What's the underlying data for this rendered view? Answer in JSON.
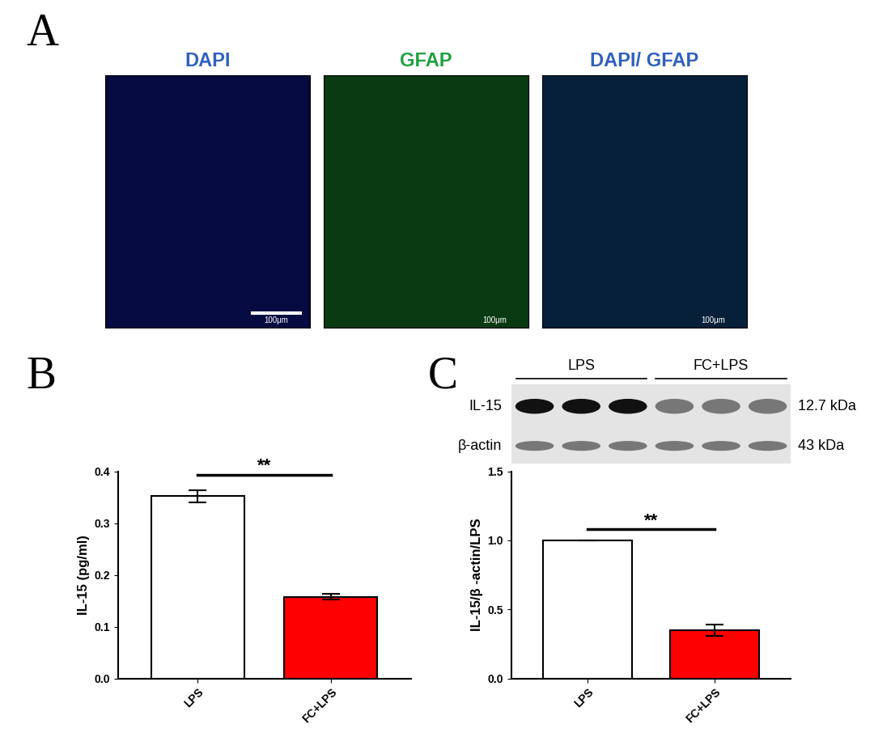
{
  "panel_labels": [
    "A",
    "B",
    "C"
  ],
  "images": {
    "titles": [
      "DAPI",
      "GFAP",
      "DAPI/ GFAP"
    ],
    "scale_bar": "100μm"
  },
  "blot": {
    "groups": [
      "LPS",
      "FC+LPS"
    ],
    "rows": [
      {
        "name": "IL-15",
        "size": "12.7 kDa"
      },
      {
        "name": "β-actin",
        "size": "43 kDa"
      }
    ]
  },
  "chart_data": [
    {
      "type": "bar",
      "categories": [
        "LPS",
        "FC+LPS"
      ],
      "values": [
        0.352,
        0.158
      ],
      "errors": [
        0.012,
        0.006
      ],
      "colors": [
        "#ffffff",
        "#ff0000"
      ],
      "y_label": "IL-15 (pg/ml)",
      "ylim": [
        0,
        0.4
      ],
      "yticks": [
        0.0,
        0.1,
        0.2,
        0.3,
        0.4
      ],
      "annotations": [
        "**"
      ]
    },
    {
      "type": "bar",
      "categories": [
        "LPS",
        "FC+LPS"
      ],
      "values": [
        1.0,
        0.35
      ],
      "errors": [
        0,
        0.04
      ],
      "colors": [
        "#ffffff",
        "#ff0000"
      ],
      "y_label": "IL-15/β -actin/LPS",
      "ylim": [
        0,
        1.5
      ],
      "yticks": [
        0.0,
        0.5,
        1.0,
        1.5
      ],
      "annotations": [
        "**"
      ]
    }
  ]
}
